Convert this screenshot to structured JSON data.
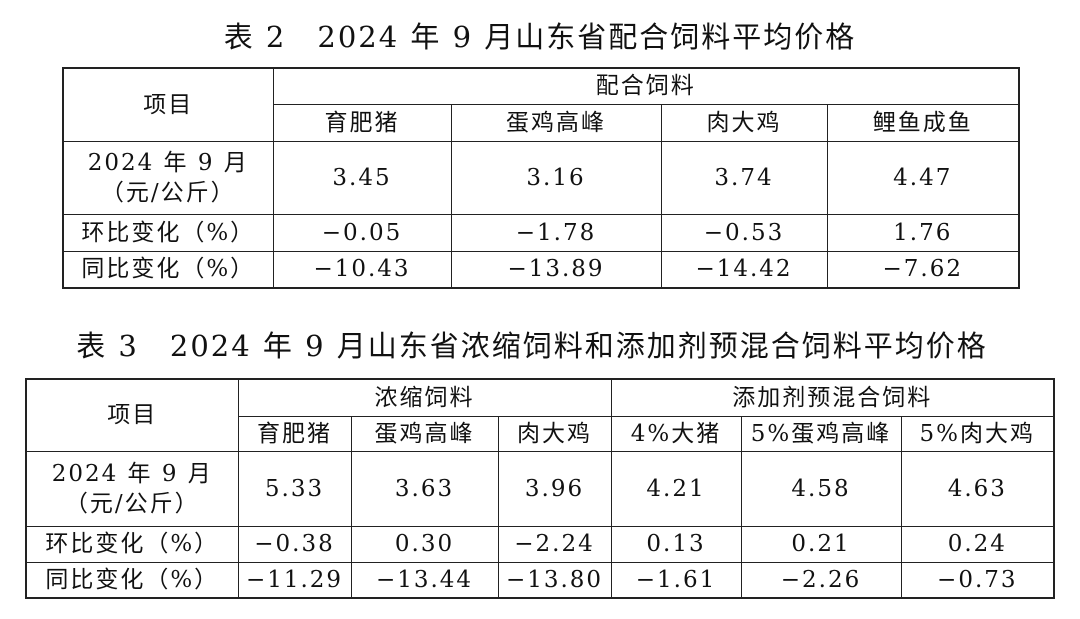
{
  "table2": {
    "title": "表 2　2024 年 9 月山东省配合饲料平均价格",
    "item_header": "项目",
    "groups": [
      {
        "name": "配合饲料",
        "columns": [
          "育肥猪",
          "蛋鸡高峰",
          "肉大鸡",
          "鲤鱼成鱼"
        ]
      }
    ],
    "rows": [
      {
        "label": [
          "2024 年 9 月",
          "（元/公斤）"
        ],
        "values": [
          "3.45",
          "3.16",
          "3.74",
          "4.47"
        ]
      },
      {
        "label": [
          "环比变化（%）"
        ],
        "values": [
          "−0.05",
          "−1.78",
          "−0.53",
          "1.76"
        ]
      },
      {
        "label": [
          "同比变化（%）"
        ],
        "values": [
          "−10.43",
          "−13.89",
          "−14.42",
          "−7.62"
        ]
      }
    ]
  },
  "table3": {
    "title": "表 3　2024 年 9 月山东省浓缩饲料和添加剂预混合饲料平均价格",
    "item_header": "项目",
    "groups": [
      {
        "name": "浓缩饲料",
        "columns": [
          "育肥猪",
          "蛋鸡高峰",
          "肉大鸡"
        ]
      },
      {
        "name": "添加剂预混合饲料",
        "columns": [
          "4%大猪",
          "5%蛋鸡高峰",
          "5%肉大鸡"
        ]
      }
    ],
    "rows": [
      {
        "label": [
          "2024 年 9 月",
          "（元/公斤）"
        ],
        "values": [
          "5.33",
          "3.63",
          "3.96",
          "4.21",
          "4.58",
          "4.63"
        ]
      },
      {
        "label": [
          "环比变化（%）"
        ],
        "values": [
          "−0.38",
          "0.30",
          "−2.24",
          "0.13",
          "0.21",
          "0.24"
        ]
      },
      {
        "label": [
          "同比变化（%）"
        ],
        "values": [
          "−11.29",
          "−13.44",
          "−13.80",
          "−1.61",
          "−2.26",
          "−0.73"
        ]
      }
    ]
  }
}
